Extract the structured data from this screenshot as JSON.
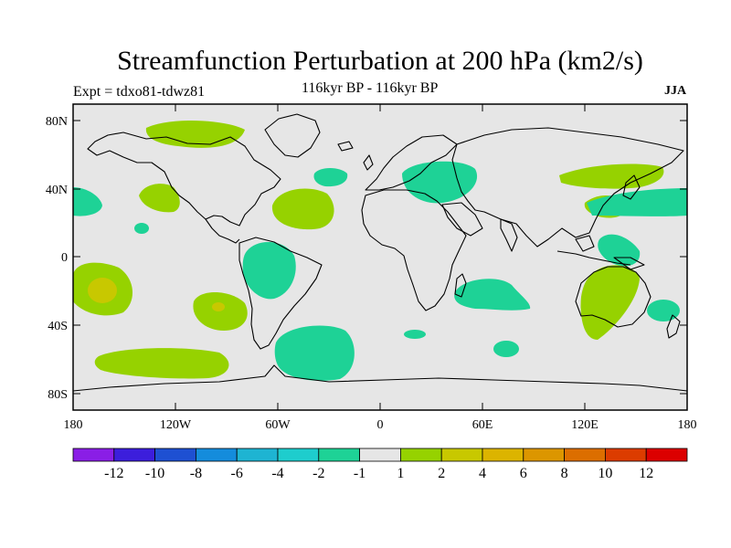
{
  "title": "Streamfunction Perturbation at 200 hPa (km2/s)",
  "experiment": "Expt = tdxo81-tdwz81",
  "period": "116kyr BP - 116kyr BP",
  "season": "JJA",
  "map": {
    "lat_ticks": [
      "80N",
      "40N",
      "0",
      "40S",
      "80S"
    ],
    "lon_ticks": [
      "180",
      "120W",
      "60W",
      "0",
      "60E",
      "120E",
      "180"
    ],
    "ocean_color": "#e6e6e6",
    "coast_color": "#000000"
  },
  "colorbar": {
    "colors": [
      "#8a1ee6",
      "#3c1edc",
      "#1e50d2",
      "#148cdc",
      "#1eb4d2",
      "#1ecdcd",
      "#1ed296",
      "#e6e6e6",
      "#96d200",
      "#c8c800",
      "#dcb400",
      "#dc9600",
      "#dc6e00",
      "#dc3c00",
      "#dc0000"
    ],
    "labels": [
      "-12",
      "-10",
      "-8",
      "-6",
      "-4",
      "-2",
      "-1",
      "1",
      "2",
      "4",
      "6",
      "8",
      "10",
      "12"
    ]
  }
}
